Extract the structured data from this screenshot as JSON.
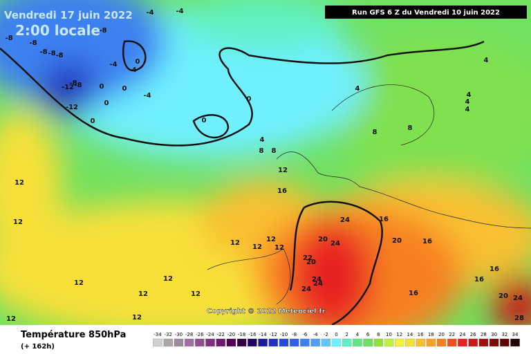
{
  "header": {
    "date": "Vendredi 17 juin 2022",
    "time": "2:00 locale",
    "run": "Run GFS 6 Z du Vendredi 10 juin 2022"
  },
  "footer": {
    "title": "Température 850hPa",
    "range": "(+ 162h)",
    "copyright": "Copyright © 2022 Meteociel.fr"
  },
  "scale": {
    "ticks": [
      -34,
      -32,
      -30,
      -28,
      -26,
      -24,
      -22,
      -20,
      -18,
      -16,
      -14,
      -12,
      -10,
      -8,
      -6,
      -4,
      -2,
      0,
      2,
      4,
      6,
      8,
      10,
      12,
      14,
      16,
      18,
      20,
      22,
      24,
      26,
      28,
      30,
      32,
      34
    ],
    "colors": [
      "#d0d0d0",
      "#a8a8a8",
      "#9c8c9c",
      "#a070a0",
      "#905090",
      "#803080",
      "#701870",
      "#500050",
      "#300040",
      "#200060",
      "#1818a0",
      "#2030c0",
      "#2848d8",
      "#3060e8",
      "#3c80f0",
      "#50a0f8",
      "#60c8ff",
      "#70f0ff",
      "#60f0c0",
      "#60e880",
      "#70e060",
      "#90e040",
      "#c0f040",
      "#f0f040",
      "#f8e038",
      "#f8c030",
      "#f8a028",
      "#f88020",
      "#f05020",
      "#e82020",
      "#c81818",
      "#a01010",
      "#800808",
      "#600000",
      "#200000"
    ]
  },
  "contour_labels": [
    -4,
    -4,
    -8,
    -8,
    -8,
    -8,
    -8,
    -8,
    -4,
    0,
    -4,
    -8,
    -12,
    -8,
    0,
    0,
    -4,
    0,
    -12,
    0,
    0,
    0,
    4,
    4,
    4,
    4,
    4,
    8,
    8,
    4,
    8,
    8,
    12,
    16,
    12,
    12,
    24,
    16,
    20,
    24,
    20,
    16,
    12,
    12,
    12,
    12,
    22,
    20,
    24,
    24,
    24,
    12,
    12,
    12,
    12,
    16,
    16,
    16,
    20,
    24,
    28,
    12,
    12
  ]
}
